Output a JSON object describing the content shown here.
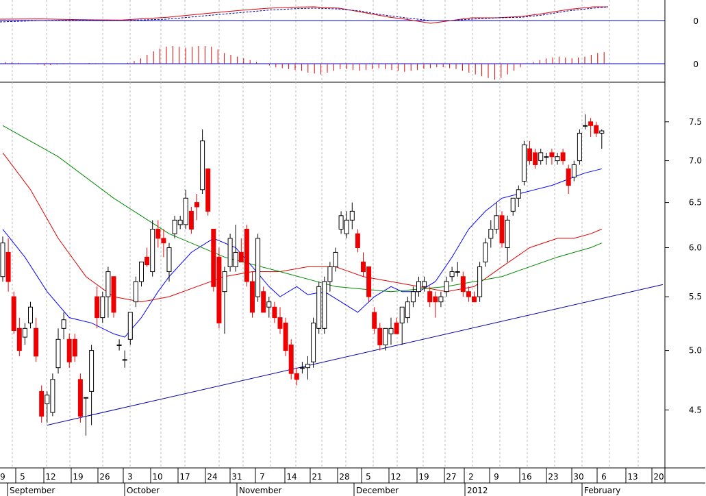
{
  "chart_data": [
    {
      "type": "line",
      "panel": "macd",
      "y_ticks": [
        "0"
      ],
      "series": [
        {
          "color": "#dd0000",
          "style": "solid",
          "x": [
            0,
            8,
            16,
            24,
            33,
            42,
            48,
            53,
            58,
            62,
            67,
            71,
            74,
            77,
            80,
            85,
            89,
            93,
            98,
            103,
            107,
            112,
            117,
            120
          ],
          "values": [
            0.55,
            0.56,
            0.53,
            0.52,
            0.62,
            0.78,
            0.88,
            0.95,
            0.99,
            1.0,
            0.95,
            0.82,
            0.72,
            0.62,
            0.55,
            0.4,
            0.5,
            0.6,
            0.6,
            0.65,
            0.75,
            0.9,
            1.0,
            1.0
          ]
        },
        {
          "color": "#0000aa",
          "style": "dashed",
          "x": [
            0,
            8,
            16,
            24,
            33,
            42,
            48,
            53,
            58,
            62,
            67,
            71,
            74,
            77,
            80,
            85,
            89,
            93,
            98,
            103,
            107,
            112,
            117,
            120
          ],
          "values": [
            0.45,
            0.5,
            0.52,
            0.5,
            0.55,
            0.7,
            0.8,
            0.88,
            0.93,
            0.95,
            0.92,
            0.85,
            0.75,
            0.67,
            0.6,
            0.5,
            0.5,
            0.55,
            0.6,
            0.62,
            0.7,
            0.85,
            0.95,
            1.0
          ]
        }
      ],
      "histogram": {
        "color": "#dd0000",
        "values": [
          0.1,
          0.08,
          0.05,
          0.02,
          0.0,
          -0.05,
          -0.1,
          -0.08,
          -0.05,
          -0.03,
          -0.02,
          0.01,
          0.02,
          0.04,
          0.03,
          0.02,
          0.02,
          0.01,
          0.0,
          0.05,
          0.15,
          0.3,
          0.5,
          0.7,
          0.85,
          0.95,
          1.0,
          0.95,
          0.9,
          0.95,
          1.0,
          1.0,
          0.95,
          0.8,
          0.6,
          0.5,
          0.4,
          0.3,
          0.2,
          0.1,
          0.0,
          -0.1,
          -0.2,
          -0.25,
          -0.3,
          -0.35,
          -0.4,
          -0.5,
          -0.55,
          -0.6,
          -0.5,
          -0.4,
          -0.3,
          -0.3,
          -0.35,
          -0.4,
          -0.35,
          -0.3,
          -0.25,
          -0.3,
          -0.35,
          -0.4,
          -0.45,
          -0.4,
          -0.35,
          -0.3,
          -0.25,
          -0.2,
          -0.2,
          -0.25,
          -0.3,
          -0.4,
          -0.5,
          -0.6,
          -0.7,
          -0.8,
          -0.9,
          -0.8,
          -0.6,
          -0.4,
          -0.2,
          0.0,
          0.1,
          0.2,
          0.3,
          0.35,
          0.4,
          0.35,
          0.3,
          0.35,
          0.4,
          0.5,
          0.6,
          0.65
        ]
      }
    },
    {
      "type": "candlestick",
      "panel": "price",
      "y_ticks": [
        "7.5",
        "7.0",
        "6.5",
        "6.0",
        "5.5",
        "5.0",
        "4.5"
      ],
      "y_range": [
        4.1,
        7.9
      ],
      "log_scale": true,
      "x_tick_labels": [
        "9",
        "5",
        "12",
        "19",
        "26",
        "3",
        "10",
        "17",
        "24",
        "31",
        "7",
        "14",
        "21",
        "28",
        "5",
        "12",
        "19",
        "27",
        "2",
        "9",
        "16",
        "23",
        "30",
        "6",
        "13",
        "20"
      ],
      "month_labels": [
        "September",
        "October",
        "November",
        "December",
        "2012",
        "February"
      ],
      "up_color": "#ffffff",
      "down_color": "#ee0000",
      "candles": [
        {
          "o": 5.7,
          "h": 6.12,
          "l": 5.65,
          "c": 6.05
        },
        {
          "o": 5.95,
          "h": 6.1,
          "l": 5.55,
          "c": 5.65
        },
        {
          "o": 5.5,
          "h": 5.55,
          "l": 5.15,
          "c": 5.18
        },
        {
          "o": 5.2,
          "h": 5.3,
          "l": 4.95,
          "c": 5.0
        },
        {
          "o": 5.12,
          "h": 5.25,
          "l": 5.05,
          "c": 5.2
        },
        {
          "o": 5.25,
          "h": 5.45,
          "l": 5.2,
          "c": 5.4
        },
        {
          "o": 5.2,
          "h": 5.3,
          "l": 4.9,
          "c": 4.95
        },
        {
          "o": 4.65,
          "h": 4.7,
          "l": 4.4,
          "c": 4.45
        },
        {
          "o": 4.55,
          "h": 4.65,
          "l": 4.4,
          "c": 4.62
        },
        {
          "o": 4.48,
          "h": 4.8,
          "l": 4.45,
          "c": 4.75
        },
        {
          "o": 4.85,
          "h": 5.2,
          "l": 4.8,
          "c": 5.1
        },
        {
          "o": 5.2,
          "h": 5.35,
          "l": 5.1,
          "c": 5.28
        },
        {
          "o": 5.1,
          "h": 5.15,
          "l": 4.85,
          "c": 4.9
        },
        {
          "o": 5.1,
          "h": 5.15,
          "l": 4.9,
          "c": 4.95
        },
        {
          "o": 4.75,
          "h": 4.8,
          "l": 4.4,
          "c": 4.45
        },
        {
          "o": 4.6,
          "h": 4.6,
          "l": 4.3,
          "c": 4.6
        },
        {
          "o": 4.65,
          "h": 5.05,
          "l": 4.38,
          "c": 5.0
        },
        {
          "o": 5.5,
          "h": 5.6,
          "l": 5.2,
          "c": 5.3
        },
        {
          "o": 5.3,
          "h": 5.55,
          "l": 5.25,
          "c": 5.5
        },
        {
          "o": 5.5,
          "h": 5.8,
          "l": 5.3,
          "c": 5.75
        },
        {
          "o": 5.7,
          "h": 5.7,
          "l": 5.3,
          "c": 5.35
        },
        {
          "o": 5.05,
          "h": 5.1,
          "l": 5.0,
          "c": 5.05
        },
        {
          "o": 4.92,
          "h": 5.0,
          "l": 4.85,
          "c": 4.92
        },
        {
          "o": 5.1,
          "h": 5.35,
          "l": 5.05,
          "c": 5.35
        },
        {
          "o": 5.45,
          "h": 5.7,
          "l": 5.4,
          "c": 5.65
        },
        {
          "o": 5.65,
          "h": 5.85,
          "l": 5.6,
          "c": 5.85
        },
        {
          "o": 5.9,
          "h": 6.0,
          "l": 5.8,
          "c": 5.82
        },
        {
          "o": 5.75,
          "h": 6.3,
          "l": 5.7,
          "c": 6.2
        },
        {
          "o": 6.2,
          "h": 6.3,
          "l": 6.0,
          "c": 6.1
        },
        {
          "o": 6.1,
          "h": 6.2,
          "l": 5.9,
          "c": 6.05
        },
        {
          "o": 5.75,
          "h": 6.05,
          "l": 5.65,
          "c": 6.0
        },
        {
          "o": 6.15,
          "h": 6.35,
          "l": 6.1,
          "c": 6.3
        },
        {
          "o": 6.25,
          "h": 6.35,
          "l": 6.2,
          "c": 6.3
        },
        {
          "o": 6.25,
          "h": 6.65,
          "l": 6.2,
          "c": 6.55
        },
        {
          "o": 6.4,
          "h": 6.45,
          "l": 6.15,
          "c": 6.2
        },
        {
          "o": 6.5,
          "h": 6.6,
          "l": 6.3,
          "c": 6.45
        },
        {
          "o": 6.65,
          "h": 7.4,
          "l": 6.6,
          "c": 7.25
        },
        {
          "o": 6.9,
          "h": 6.9,
          "l": 6.35,
          "c": 6.4
        },
        {
          "o": 6.2,
          "h": 6.2,
          "l": 5.55,
          "c": 5.6
        },
        {
          "o": 5.9,
          "h": 6.0,
          "l": 5.2,
          "c": 5.25
        },
        {
          "o": 5.55,
          "h": 5.8,
          "l": 5.15,
          "c": 5.75
        },
        {
          "o": 5.8,
          "h": 6.15,
          "l": 5.75,
          "c": 6.1
        },
        {
          "o": 5.8,
          "h": 6.25,
          "l": 5.75,
          "c": 5.95
        },
        {
          "o": 5.95,
          "h": 6.1,
          "l": 5.85,
          "c": 5.85
        },
        {
          "o": 6.2,
          "h": 6.25,
          "l": 5.6,
          "c": 5.65
        },
        {
          "o": 5.65,
          "h": 5.75,
          "l": 5.3,
          "c": 5.35
        },
        {
          "o": 5.5,
          "h": 6.15,
          "l": 5.45,
          "c": 6.1
        },
        {
          "o": 5.55,
          "h": 5.6,
          "l": 5.35,
          "c": 5.35
        },
        {
          "o": 5.4,
          "h": 5.5,
          "l": 5.3,
          "c": 5.45
        },
        {
          "o": 5.4,
          "h": 5.45,
          "l": 5.25,
          "c": 5.3
        },
        {
          "o": 5.3,
          "h": 5.4,
          "l": 5.15,
          "c": 5.2
        },
        {
          "o": 5.25,
          "h": 5.3,
          "l": 4.95,
          "c": 5.0
        },
        {
          "o": 5.05,
          "h": 5.1,
          "l": 4.75,
          "c": 4.8
        },
        {
          "o": 4.8,
          "h": 4.85,
          "l": 4.7,
          "c": 4.75
        },
        {
          "o": 4.85,
          "h": 4.9,
          "l": 4.8,
          "c": 4.85
        },
        {
          "o": 4.85,
          "h": 4.95,
          "l": 4.75,
          "c": 4.88
        },
        {
          "o": 4.9,
          "h": 5.3,
          "l": 4.85,
          "c": 5.25
        },
        {
          "o": 5.2,
          "h": 5.65,
          "l": 5.15,
          "c": 5.6
        },
        {
          "o": 5.2,
          "h": 5.7,
          "l": 5.15,
          "c": 5.65
        },
        {
          "o": 5.65,
          "h": 5.85,
          "l": 5.55,
          "c": 5.8
        },
        {
          "o": 5.8,
          "h": 6.0,
          "l": 5.75,
          "c": 5.95
        },
        {
          "o": 6.2,
          "h": 6.4,
          "l": 6.15,
          "c": 6.35
        },
        {
          "o": 6.15,
          "h": 6.4,
          "l": 6.1,
          "c": 6.3
        },
        {
          "o": 6.3,
          "h": 6.5,
          "l": 6.2,
          "c": 6.4
        },
        {
          "o": 6.15,
          "h": 6.2,
          "l": 5.95,
          "c": 6.0
        },
        {
          "o": 5.85,
          "h": 5.95,
          "l": 5.7,
          "c": 5.75
        },
        {
          "o": 5.8,
          "h": 5.8,
          "l": 5.45,
          "c": 5.5
        },
        {
          "o": 5.35,
          "h": 5.4,
          "l": 5.15,
          "c": 5.2
        },
        {
          "o": 5.2,
          "h": 5.25,
          "l": 5.0,
          "c": 5.05
        },
        {
          "o": 5.05,
          "h": 5.2,
          "l": 5.0,
          "c": 5.2
        },
        {
          "o": 5.15,
          "h": 5.3,
          "l": 5.05,
          "c": 5.2
        },
        {
          "o": 5.25,
          "h": 5.3,
          "l": 5.15,
          "c": 5.15
        },
        {
          "o": 5.25,
          "h": 5.4,
          "l": 5.05,
          "c": 5.4
        },
        {
          "o": 5.3,
          "h": 5.5,
          "l": 5.25,
          "c": 5.45
        },
        {
          "o": 5.45,
          "h": 5.6,
          "l": 5.4,
          "c": 5.55
        },
        {
          "o": 5.55,
          "h": 5.7,
          "l": 5.5,
          "c": 5.65
        },
        {
          "o": 5.6,
          "h": 5.7,
          "l": 5.55,
          "c": 5.65
        },
        {
          "o": 5.55,
          "h": 5.6,
          "l": 5.4,
          "c": 5.45
        },
        {
          "o": 5.5,
          "h": 5.55,
          "l": 5.3,
          "c": 5.45
        },
        {
          "o": 5.45,
          "h": 5.55,
          "l": 5.4,
          "c": 5.5
        },
        {
          "o": 5.55,
          "h": 5.7,
          "l": 5.5,
          "c": 5.65
        },
        {
          "o": 5.7,
          "h": 5.8,
          "l": 5.65,
          "c": 5.75
        },
        {
          "o": 5.75,
          "h": 5.85,
          "l": 5.7,
          "c": 5.75
        },
        {
          "o": 5.7,
          "h": 5.75,
          "l": 5.5,
          "c": 5.55
        },
        {
          "o": 5.55,
          "h": 5.6,
          "l": 5.45,
          "c": 5.5
        },
        {
          "o": 5.5,
          "h": 5.55,
          "l": 5.45,
          "c": 5.45
        },
        {
          "o": 5.5,
          "h": 5.85,
          "l": 5.45,
          "c": 5.8
        },
        {
          "o": 5.85,
          "h": 6.1,
          "l": 5.8,
          "c": 6.05
        },
        {
          "o": 6.1,
          "h": 6.3,
          "l": 6.0,
          "c": 6.2
        },
        {
          "o": 6.2,
          "h": 6.5,
          "l": 6.15,
          "c": 6.35
        },
        {
          "o": 6.35,
          "h": 6.4,
          "l": 6.0,
          "c": 6.05
        },
        {
          "o": 6.0,
          "h": 6.35,
          "l": 5.85,
          "c": 6.3
        },
        {
          "o": 6.4,
          "h": 6.55,
          "l": 6.35,
          "c": 6.55
        },
        {
          "o": 6.55,
          "h": 6.7,
          "l": 6.45,
          "c": 6.65
        }
      ],
      "candles_tail": [
        {
          "o": 6.75,
          "h": 7.25,
          "l": 6.7,
          "c": 7.2
        },
        {
          "o": 7.15,
          "h": 7.25,
          "l": 6.95,
          "c": 7.0
        },
        {
          "o": 7.1,
          "h": 7.15,
          "l": 6.9,
          "c": 6.95
        },
        {
          "o": 7.0,
          "h": 7.15,
          "l": 6.95,
          "c": 7.1
        },
        {
          "o": 7.05,
          "h": 7.1,
          "l": 6.95,
          "c": 7.05
        },
        {
          "o": 7.1,
          "h": 7.15,
          "l": 6.95,
          "c": 7.05
        },
        {
          "o": 7.0,
          "h": 7.1,
          "l": 6.95,
          "c": 7.05
        },
        {
          "o": 7.1,
          "h": 7.15,
          "l": 6.95,
          "c": 7.0
        },
        {
          "o": 6.9,
          "h": 6.95,
          "l": 6.6,
          "c": 6.7
        },
        {
          "o": 6.8,
          "h": 7.0,
          "l": 6.75,
          "c": 6.95
        },
        {
          "o": 7.0,
          "h": 7.4,
          "l": 6.95,
          "c": 7.35
        },
        {
          "o": 7.45,
          "h": 7.6,
          "l": 7.4,
          "c": 7.45
        },
        {
          "o": 7.5,
          "h": 7.55,
          "l": 7.3,
          "c": 7.45
        },
        {
          "o": 7.45,
          "h": 7.5,
          "l": 7.3,
          "c": 7.35
        },
        {
          "o": 7.35,
          "h": 7.4,
          "l": 7.15,
          "c": 7.38
        }
      ],
      "overlays": [
        {
          "color": "#0000ff",
          "name": "",
          "x": [
            0,
            4,
            8,
            12,
            16,
            20,
            22,
            25,
            28,
            30,
            34,
            38,
            42,
            45,
            48,
            50,
            53,
            55,
            58,
            61,
            64,
            67,
            70,
            72,
            75,
            78,
            81,
            84,
            87,
            90,
            93,
            96,
            99,
            101,
            103,
            105,
            108
          ],
          "values": [
            6.2,
            5.9,
            5.55,
            5.3,
            5.25,
            5.15,
            5.12,
            5.3,
            5.55,
            5.7,
            5.95,
            6.1,
            6.0,
            5.8,
            5.6,
            5.5,
            5.6,
            5.52,
            5.55,
            5.45,
            5.35,
            5.5,
            5.6,
            5.55,
            5.55,
            5.65,
            5.9,
            6.2,
            6.4,
            6.55,
            6.6,
            6.65,
            6.7,
            6.75,
            6.8,
            6.85,
            6.9
          ]
        },
        {
          "color": "#dd0000",
          "name": "",
          "x": [
            0,
            5,
            10,
            15,
            20,
            25,
            30,
            35,
            40,
            45,
            50,
            55,
            60,
            65,
            70,
            75,
            80,
            85,
            90,
            95,
            100,
            103,
            106,
            108
          ],
          "values": [
            7.1,
            6.65,
            6.1,
            5.7,
            5.5,
            5.45,
            5.5,
            5.6,
            5.7,
            5.75,
            5.75,
            5.8,
            5.8,
            5.7,
            5.65,
            5.6,
            5.55,
            5.6,
            5.8,
            6.0,
            6.1,
            6.1,
            6.15,
            6.2
          ]
        },
        {
          "color": "#008800",
          "name": "",
          "x": [
            0,
            10,
            20,
            30,
            40,
            50,
            60,
            70,
            80,
            90,
            95,
            100,
            103,
            106,
            108
          ],
          "values": [
            7.45,
            7.05,
            6.55,
            6.15,
            5.9,
            5.75,
            5.6,
            5.55,
            5.6,
            5.7,
            5.8,
            5.9,
            5.95,
            6.0,
            6.05
          ]
        },
        {
          "color": "#0000aa",
          "name": "",
          "x": [
            8,
            119
          ],
          "values": [
            4.38,
            5.62
          ]
        }
      ]
    }
  ]
}
